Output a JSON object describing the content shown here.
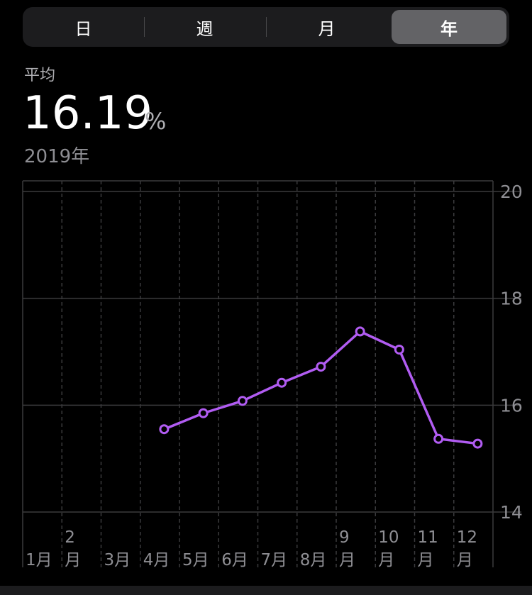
{
  "segments": [
    "日",
    "週",
    "月",
    "年"
  ],
  "selected_segment": "年",
  "summary": {
    "label": "平均",
    "value": "16.19",
    "unit": "%",
    "period": "2019年"
  },
  "colors": {
    "line": "#b15cf2",
    "grid": "#3a3a3c",
    "axis_text": "#8e8e93"
  },
  "chart_data": {
    "type": "line",
    "categories": [
      "1月",
      "2月",
      "3月",
      "4月",
      "5月",
      "6月",
      "7月",
      "8月",
      "9月",
      "10月",
      "11月",
      "12月"
    ],
    "tick_labels": [
      [
        "",
        "1月"
      ],
      [
        "2",
        "月"
      ],
      [
        "",
        "3月"
      ],
      [
        "",
        "4月"
      ],
      [
        "",
        "5月"
      ],
      [
        "",
        "6月"
      ],
      [
        "",
        "7月"
      ],
      [
        "",
        "8月"
      ],
      [
        "9",
        "月"
      ],
      [
        "10",
        "月"
      ],
      [
        "11",
        "月"
      ],
      [
        "12",
        "月"
      ]
    ],
    "series": [
      {
        "values": [
          null,
          null,
          null,
          15.55,
          15.85,
          16.08,
          16.42,
          16.72,
          17.38,
          17.04,
          15.37,
          15.28
        ]
      }
    ],
    "ylim": [
      14,
      20
    ],
    "yticks": [
      14,
      16,
      18,
      20
    ],
    "grid": true
  }
}
